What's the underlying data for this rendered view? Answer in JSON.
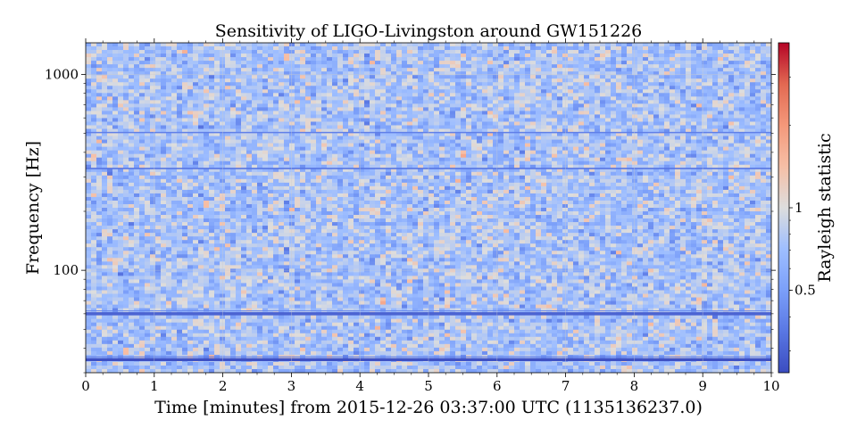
{
  "chart_data": {
    "type": "heatmap",
    "title": "Sensitivity of LIGO-Livingston around GW151226",
    "xlabel": "Time [minutes] from 2015-12-26 03:37:00 UTC (1135136237.0)",
    "ylabel": "Frequency [Hz]",
    "x": {
      "lim": [
        0,
        10
      ],
      "ticks": [
        0,
        1,
        2,
        3,
        4,
        5,
        6,
        7,
        8,
        9,
        10
      ],
      "tick_labels": [
        "0",
        "1",
        "2",
        "3",
        "4",
        "5",
        "6",
        "7",
        "8",
        "9",
        "10"
      ],
      "minor_step": 0.25
    },
    "y": {
      "scale": "log",
      "lim": [
        30,
        1450
      ],
      "ticks": [
        100,
        1000
      ],
      "tick_labels": [
        "100",
        "1000"
      ]
    },
    "colorbar": {
      "label": "Rayleigh statistic",
      "colormap": "coolwarm",
      "scale": "log",
      "lim": [
        0.25,
        4
      ],
      "ticks": [
        0.5,
        1
      ],
      "tick_labels": [
        "0.5",
        "1"
      ]
    },
    "grid": true,
    "typical_value_range": [
      0.4,
      1.4
    ],
    "spectral_lines": [
      {
        "frequency_hz": 35,
        "rayleigh": 0.26,
        "strength": "strong"
      },
      {
        "frequency_hz": 60,
        "rayleigh": 0.3,
        "strength": "strong"
      },
      {
        "frequency_hz": 331,
        "rayleigh": 0.35,
        "strength": "medium"
      },
      {
        "frequency_hz": 505,
        "rayleigh": 0.38,
        "strength": "medium"
      }
    ]
  }
}
